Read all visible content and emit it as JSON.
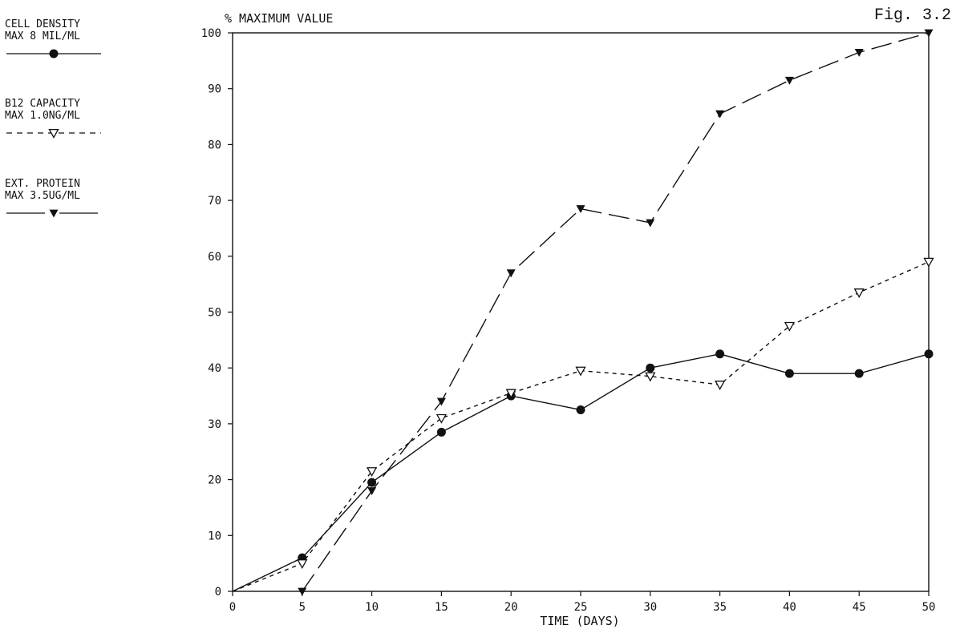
{
  "figure_label": "Fig. 3.2",
  "chart_data": {
    "type": "line",
    "ylabel": "% MAXIMUM VALUE",
    "xlabel": "TIME  (DAYS)",
    "xlim": [
      0,
      50
    ],
    "ylim": [
      0,
      100
    ],
    "x_ticks": [
      0,
      5,
      10,
      15,
      20,
      25,
      30,
      35,
      40,
      45,
      50
    ],
    "y_ticks": [
      0,
      10,
      20,
      30,
      40,
      50,
      60,
      70,
      80,
      90,
      100
    ],
    "grid": false,
    "legend_position": "left",
    "series": [
      {
        "legend_line1": "CELL DENSITY",
        "legend_line2": "MAX 8 MIL/ML",
        "marker": "filled-circle",
        "dash": "solid",
        "x": [
          0,
          5,
          10,
          15,
          20,
          25,
          30,
          35,
          40,
          45,
          50
        ],
        "y": [
          0,
          6,
          19.5,
          28.5,
          35,
          32.5,
          40,
          42.5,
          39,
          39,
          42.5
        ]
      },
      {
        "legend_line1": "B12 CAPACITY",
        "legend_line2": "MAX 1.0NG/ML",
        "marker": "open-triangle-down",
        "dash": "short-dash",
        "x": [
          0,
          5,
          10,
          15,
          20,
          25,
          30,
          35,
          40,
          45,
          50
        ],
        "y": [
          0,
          5,
          21.5,
          31,
          35.5,
          39.5,
          38.5,
          37,
          47.5,
          53.5,
          59
        ]
      },
      {
        "legend_line1": "EXT. PROTEIN",
        "legend_line2": "MAX 3.5UG/ML",
        "marker": "filled-triangle-down",
        "dash": "long-dash",
        "x": [
          5,
          10,
          15,
          20,
          25,
          30,
          35,
          40,
          45,
          50
        ],
        "y": [
          0,
          18,
          34,
          57,
          68.5,
          66,
          85.5,
          91.5,
          96.5,
          100
        ]
      }
    ]
  }
}
